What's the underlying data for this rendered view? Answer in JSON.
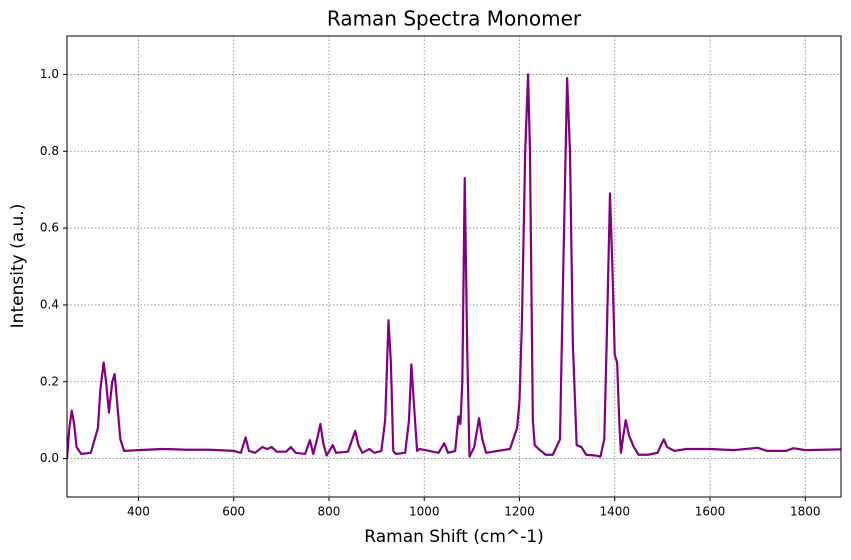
{
  "chart_data": {
    "type": "line",
    "title": "Raman Spectra Monomer",
    "x_label": "Raman Shift (cm^-1)",
    "y_label": "Intensity (a.u.)",
    "x": [
      250,
      255,
      260,
      265,
      270,
      280,
      300,
      315,
      320,
      327,
      332,
      338,
      345,
      350,
      355,
      362,
      370,
      400,
      450,
      480,
      500,
      550,
      600,
      615,
      625,
      632,
      645,
      660,
      670,
      680,
      690,
      710,
      720,
      730,
      750,
      760,
      767,
      775,
      782,
      788,
      795,
      808,
      815,
      840,
      855,
      862,
      870,
      885,
      895,
      910,
      918,
      925,
      930,
      935,
      940,
      960,
      968,
      973,
      978,
      985,
      990,
      1030,
      1042,
      1050,
      1065,
      1072,
      1076,
      1080,
      1085,
      1090,
      1095,
      1105,
      1115,
      1122,
      1130,
      1180,
      1195,
      1200,
      1205,
      1212,
      1218,
      1222,
      1228,
      1232,
      1240,
      1255,
      1270,
      1285,
      1292,
      1300,
      1306,
      1312,
      1320,
      1330,
      1340,
      1360,
      1370,
      1378,
      1383,
      1390,
      1395,
      1400,
      1405,
      1410,
      1413,
      1418,
      1423,
      1430,
      1440,
      1450,
      1470,
      1490,
      1497,
      1503,
      1510,
      1525,
      1550,
      1600,
      1650,
      1700,
      1720,
      1760,
      1775,
      1800,
      1875
    ],
    "series": [
      {
        "name": "Monomer",
        "color": "#800080",
        "values": [
          0.0,
          0.08,
          0.125,
          0.09,
          0.03,
          0.012,
          0.015,
          0.08,
          0.18,
          0.25,
          0.2,
          0.12,
          0.2,
          0.22,
          0.15,
          0.05,
          0.02,
          0.022,
          0.025,
          0.024,
          0.023,
          0.023,
          0.02,
          0.015,
          0.055,
          0.02,
          0.015,
          0.03,
          0.025,
          0.03,
          0.018,
          0.018,
          0.03,
          0.015,
          0.012,
          0.048,
          0.012,
          0.05,
          0.09,
          0.04,
          0.008,
          0.035,
          0.015,
          0.018,
          0.072,
          0.035,
          0.015,
          0.025,
          0.015,
          0.02,
          0.1,
          0.36,
          0.25,
          0.02,
          0.012,
          0.015,
          0.1,
          0.245,
          0.15,
          0.02,
          0.025,
          0.015,
          0.04,
          0.015,
          0.02,
          0.11,
          0.09,
          0.2,
          0.73,
          0.3,
          0.005,
          0.03,
          0.105,
          0.05,
          0.015,
          0.025,
          0.08,
          0.15,
          0.35,
          0.8,
          1.0,
          0.8,
          0.1,
          0.035,
          0.025,
          0.01,
          0.01,
          0.05,
          0.5,
          0.99,
          0.8,
          0.3,
          0.035,
          0.03,
          0.01,
          0.008,
          0.005,
          0.05,
          0.3,
          0.69,
          0.5,
          0.27,
          0.25,
          0.08,
          0.015,
          0.06,
          0.1,
          0.06,
          0.03,
          0.01,
          0.01,
          0.015,
          0.035,
          0.05,
          0.03,
          0.02,
          0.025,
          0.025,
          0.022,
          0.028,
          0.02,
          0.02,
          0.027,
          0.022,
          0.024
        ]
      }
    ],
    "xlim": [
      250,
      1875
    ],
    "ylim": [
      -0.1,
      1.1
    ],
    "xticks": [
      400,
      600,
      800,
      1000,
      1200,
      1400,
      1600,
      1800
    ],
    "yticks": [
      {
        "value": 0,
        "label": "0.0"
      },
      0.2,
      0.4,
      0.6,
      0.8,
      {
        "value": 1,
        "label": "1.0"
      }
    ],
    "grid": true
  }
}
